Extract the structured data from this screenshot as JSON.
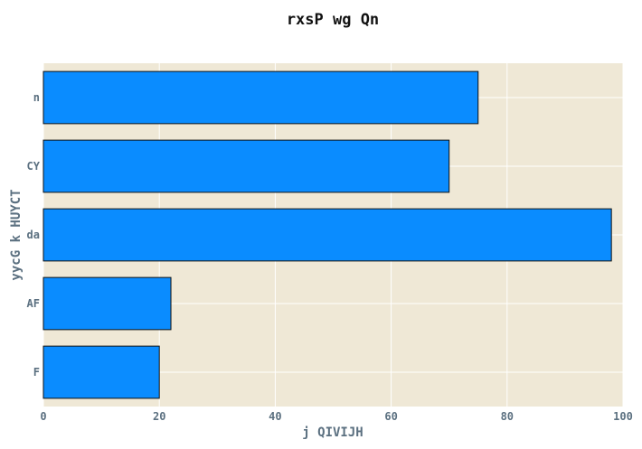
{
  "chart_data": {
    "type": "bar",
    "orientation": "horizontal",
    "title": "rxsP wg Qn",
    "xlabel": "j QIVIJH",
    "ylabel": "yycG k HUYCT",
    "categories": [
      "n",
      "CY",
      "da",
      "AF",
      "F"
    ],
    "values": [
      75,
      70,
      98,
      22,
      20
    ],
    "xlim": [
      0,
      100
    ],
    "xticks": [
      0,
      20,
      40,
      60,
      80,
      100
    ],
    "grid": true,
    "colors": {
      "plot_background": "#efe8d6",
      "bar_fill": "#0a8cff",
      "bar_stroke": "#111111",
      "grid": "#ffffff",
      "tick_text": "#5b7080",
      "title_text": "#111111"
    }
  }
}
